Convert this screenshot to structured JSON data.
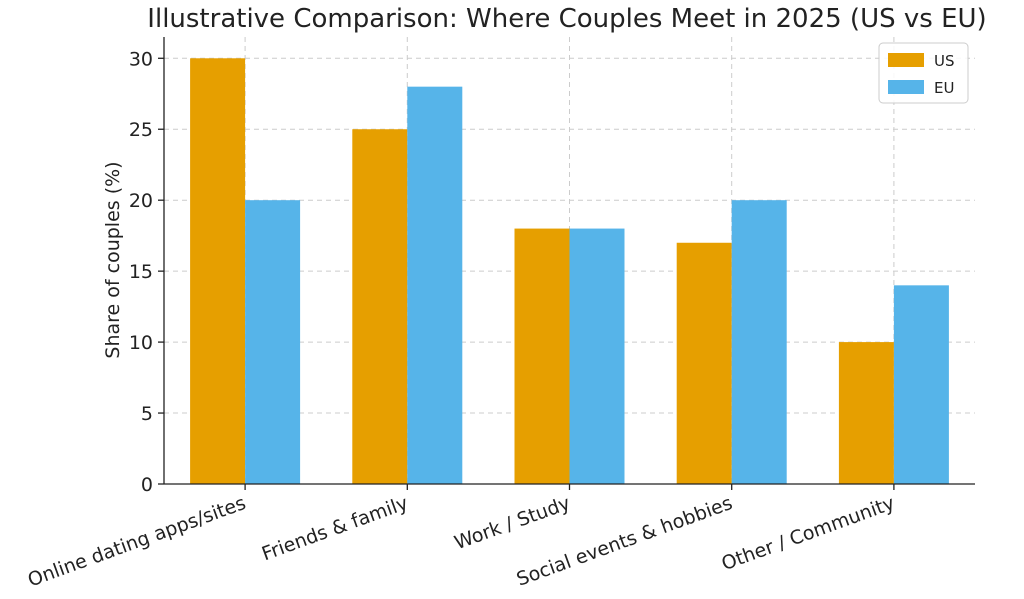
{
  "chart_data": {
    "type": "bar",
    "title": "Illustrative Comparison: Where Couples Meet in 2025 (US vs EU)",
    "xlabel": "",
    "ylabel": "Share of couples (%)",
    "ylim": [
      0,
      31.5
    ],
    "yticks": [
      0,
      5,
      10,
      15,
      20,
      25,
      30
    ],
    "grid": true,
    "legend_position": "top-right",
    "categories": [
      "Online dating apps/sites",
      "Friends & family",
      "Work / Study",
      "Social events & hobbies",
      "Other / Community"
    ],
    "series": [
      {
        "name": "US",
        "color": "#E69F00",
        "values": [
          30,
          25,
          18,
          17,
          10
        ]
      },
      {
        "name": "EU",
        "color": "#56B4E9",
        "values": [
          20,
          28,
          18,
          20,
          14
        ]
      }
    ]
  }
}
